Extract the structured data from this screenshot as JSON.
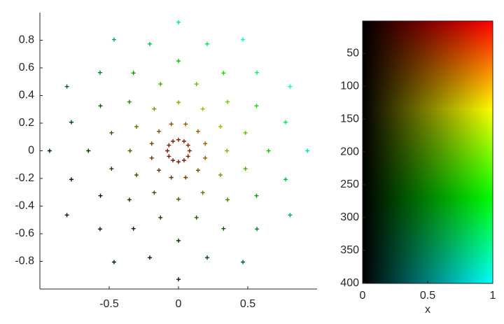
{
  "chart_data": [
    {
      "type": "scatter",
      "xlim": [
        -1,
        1
      ],
      "ylim": [
        -1,
        1
      ],
      "xticks": [
        -0.5,
        0,
        0.5
      ],
      "yticks": [
        -0.8,
        -0.6,
        -0.4,
        -0.2,
        0,
        0.2,
        0.4,
        0.6,
        0.8
      ],
      "x": [
        0.08,
        0.069,
        0.04,
        0,
        -0.04,
        -0.069,
        -0.08,
        -0.069,
        -0.04,
        0,
        0.04,
        0.069,
        0.193,
        0.141,
        0.052,
        -0.052,
        -0.141,
        -0.193,
        -0.193,
        -0.141,
        -0.052,
        0.052,
        0.141,
        0.193,
        0.35,
        0.303,
        0.175,
        0,
        -0.175,
        -0.303,
        -0.35,
        -0.303,
        -0.175,
        0,
        0.175,
        0.303,
        0.483,
        0.354,
        0.13,
        -0.13,
        -0.354,
        -0.483,
        -0.483,
        -0.354,
        -0.13,
        0.13,
        0.354,
        0.483,
        0.65,
        0.563,
        0.325,
        0,
        -0.325,
        -0.563,
        -0.65,
        -0.563,
        -0.325,
        0,
        0.325,
        0.563,
        0.773,
        0.566,
        0.207,
        -0.207,
        -0.566,
        -0.773,
        -0.773,
        -0.566,
        -0.207,
        0.207,
        0.566,
        0.773,
        0.93,
        0.805,
        0.465,
        0,
        -0.465,
        -0.805,
        -0.93,
        -0.805,
        -0.465,
        0,
        0.465,
        0.805
      ],
      "y": [
        0,
        0.04,
        0.069,
        0.08,
        0.069,
        0.04,
        0,
        -0.04,
        -0.069,
        -0.08,
        -0.069,
        -0.04,
        0.052,
        0.141,
        0.193,
        0.193,
        0.141,
        0.052,
        -0.052,
        -0.141,
        -0.193,
        -0.193,
        -0.141,
        -0.052,
        0,
        0.175,
        0.303,
        0.35,
        0.303,
        0.175,
        0,
        -0.175,
        -0.303,
        -0.35,
        -0.303,
        -0.175,
        0.13,
        0.354,
        0.483,
        0.483,
        0.354,
        0.13,
        -0.13,
        -0.354,
        -0.483,
        -0.483,
        -0.354,
        -0.13,
        0,
        0.325,
        0.563,
        0.65,
        0.563,
        0.325,
        0,
        -0.325,
        -0.563,
        -0.65,
        -0.563,
        -0.325,
        0.207,
        0.566,
        0.773,
        0.773,
        0.566,
        0.207,
        -0.207,
        -0.566,
        -0.773,
        -0.773,
        -0.566,
        -0.207,
        0,
        0.465,
        0.805,
        0.93,
        0.805,
        0.465,
        0,
        -0.465,
        -0.805,
        -0.93,
        -0.805,
        -0.465
      ]
    },
    {
      "type": "image",
      "xlabel": "x",
      "xlim": [
        0,
        1
      ],
      "ylim": [
        0.5,
        400.5
      ],
      "xticks": [
        0,
        0.5,
        1
      ],
      "yticks": [
        50,
        100,
        150,
        200,
        250,
        300,
        350,
        400
      ],
      "rows": [
        1,
        135,
        270,
        400
      ],
      "colors": [
        "#ff0000",
        "#ffff00",
        "#00ff00",
        "#00ffff"
      ],
      "dark": "#000000"
    }
  ]
}
